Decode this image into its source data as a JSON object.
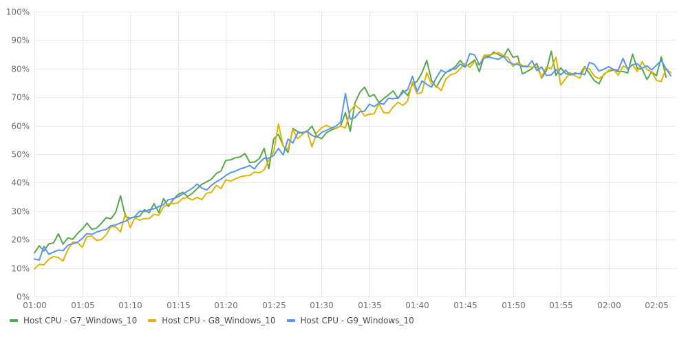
{
  "chart_data": {
    "type": "line",
    "ylim": [
      0,
      100
    ],
    "y_ticks": [
      "0%",
      "10%",
      "20%",
      "30%",
      "40%",
      "50%",
      "60%",
      "70%",
      "80%",
      "90%",
      "100%"
    ],
    "x_ticks": [
      "01:00",
      "01:05",
      "01:10",
      "01:15",
      "01:20",
      "01:25",
      "01:30",
      "01:35",
      "01:40",
      "01:45",
      "01:50",
      "01:55",
      "02:00",
      "02:05"
    ],
    "x_range_minutes": [
      0,
      67
    ],
    "sample_interval_minutes": 0.5,
    "grid": true,
    "legend_position": "bottom-left",
    "series": [
      {
        "name": "Host CPU - G7_Windows_10",
        "color": "#56a64b",
        "values": [
          15.3,
          17.8,
          16.0,
          18.5,
          18.8,
          22.0,
          18.4,
          20.6,
          20.1,
          22.1,
          23.7,
          25.8,
          23.6,
          24.0,
          25.7,
          27.7,
          27.3,
          29.6,
          35.4,
          28.1,
          27.5,
          27.9,
          28.2,
          30.5,
          29.4,
          32.6,
          29.5,
          34.4,
          31.6,
          34.0,
          35.8,
          36.6,
          35.1,
          36.2,
          37.9,
          39.4,
          40.3,
          41.2,
          43.2,
          44.1,
          47.8,
          48.0,
          48.7,
          49.0,
          50.2,
          47.1,
          47.2,
          48.4,
          52.0,
          44.9,
          55.3,
          56.9,
          52.9,
          50.6,
          59.0,
          57.9,
          57.3,
          58.0,
          59.8,
          56.3,
          55.4,
          57.5,
          58.4,
          59.1,
          59.9,
          64.6,
          58.0,
          68.0,
          71.7,
          73.5,
          70.2,
          70.9,
          68.1,
          69.5,
          70.8,
          72.2,
          69.5,
          72.4,
          70.6,
          74.5,
          75.6,
          78.6,
          82.9,
          75.9,
          73.5,
          76.5,
          78.7,
          79.4,
          80.8,
          82.9,
          80.7,
          81.7,
          83.1,
          78.9,
          84.5,
          84.3,
          85.8,
          84.9,
          84.1,
          87.0,
          84.0,
          84.4,
          78.2,
          79.0,
          80.1,
          81.8,
          76.7,
          79.3,
          86.1,
          77.6,
          80.3,
          78.3,
          77.8,
          78.5,
          78.1,
          80.7,
          78.3,
          75.8,
          74.7,
          78.1,
          79.1,
          79.5,
          79.0,
          79.0,
          78.5,
          85.1,
          80.0,
          79.9,
          76.2,
          78.9,
          77.5,
          84.1,
          77.0
        ]
      },
      {
        "name": "Host CPU - G8_Windows_10",
        "color": "#e0b400",
        "values": [
          9.7,
          11.3,
          11.1,
          13.1,
          14.0,
          13.7,
          12.5,
          16.5,
          19.1,
          19.0,
          17.3,
          21.1,
          21.2,
          19.7,
          20.0,
          21.7,
          24.6,
          24.4,
          22.7,
          29.2,
          24.2,
          27.6,
          26.8,
          27.4,
          27.4,
          28.9,
          28.5,
          31.5,
          32.5,
          32.6,
          32.9,
          34.5,
          34.7,
          33.9,
          34.8,
          34.0,
          36.3,
          36.6,
          39.0,
          37.9,
          41.0,
          40.5,
          41.3,
          42.0,
          42.4,
          42.5,
          43.7,
          43.4,
          44.5,
          48.0,
          50.7,
          60.6,
          52.7,
          51.7,
          58.7,
          55.4,
          56.9,
          58.3,
          52.5,
          57.5,
          59.2,
          60.1,
          59.3,
          59.0,
          59.8,
          59.2,
          65.0,
          67.2,
          65.9,
          63.4,
          64.0,
          64.2,
          67.7,
          64.6,
          64.4,
          66.6,
          68.2,
          67.1,
          68.7,
          75.4,
          71.1,
          71.7,
          78.6,
          74.5,
          74.0,
          72.3,
          76.4,
          77.9,
          78.4,
          80.0,
          81.8,
          80.4,
          82.5,
          81.2,
          84.7,
          84.8,
          85.2,
          85.7,
          84.6,
          83.9,
          80.8,
          82.1,
          81.1,
          80.9,
          80.5,
          80.6,
          77.1,
          80.6,
          80.0,
          84.0,
          74.2,
          76.5,
          78.6,
          77.5,
          76.7,
          80.3,
          79.9,
          77.4,
          76.5,
          77.8,
          79.4,
          79.8,
          77.7,
          80.9,
          80.2,
          81.4,
          79.0,
          82.5,
          79.7,
          78.9,
          75.9,
          75.5,
          80.0,
          78.5
        ]
      },
      {
        "name": "Host CPU - G9_Windows_10",
        "color": "#5794f2",
        "values": [
          13.2,
          12.8,
          17.6,
          14.8,
          15.6,
          16.3,
          16.1,
          18.0,
          18.5,
          19.0,
          20.4,
          22.1,
          21.8,
          22.6,
          23.2,
          23.5,
          24.9,
          25.1,
          25.9,
          26.4,
          27.4,
          28.1,
          30.0,
          29.8,
          30.5,
          30.8,
          31.6,
          32.3,
          34.0,
          34.3,
          35.0,
          36.0,
          37.0,
          38.0,
          39.5,
          38.1,
          37.4,
          39.0,
          40.3,
          41.2,
          42.5,
          43.5,
          44.0,
          44.8,
          45.3,
          46.0,
          44.8,
          47.0,
          48.5,
          48.6,
          49.5,
          52.0,
          49.7,
          55.3,
          53.9,
          57.4,
          57.6,
          58.0,
          56.6,
          55.9,
          57.6,
          58.3,
          59.1,
          59.8,
          61.2,
          71.3,
          62.3,
          62.8,
          64.9,
          65.1,
          67.5,
          66.7,
          67.9,
          67.5,
          69.6,
          69.4,
          69.7,
          71.6,
          72.6,
          77.3,
          71.9,
          75.7,
          74.5,
          73.5,
          76.8,
          79.5,
          78.6,
          79.8,
          79.9,
          81.6,
          80.5,
          85.3,
          84.8,
          81.3,
          83.7,
          84.1,
          83.6,
          83.3,
          84.4,
          82.4,
          81.6,
          81.5,
          80.8,
          80.6,
          82.8,
          79.3,
          80.6,
          77.6,
          77.8,
          79.7,
          77.8,
          79.5,
          77.8,
          78.2,
          78.3,
          77.9,
          82.2,
          81.5,
          79.1,
          79.8,
          80.7,
          79.7,
          79.4,
          83.6,
          79.8,
          81.4,
          81.7,
          80.2,
          81.0,
          79.6,
          81.2,
          82.9,
          80.0,
          77.5
        ]
      }
    ]
  }
}
